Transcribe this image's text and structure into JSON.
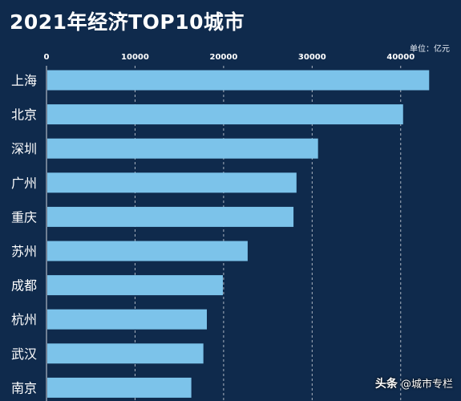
{
  "title": "2021年经济TOP10城市",
  "unit": "单位：亿元",
  "credit": {
    "brand": "头条",
    "account": "@城市专栏"
  },
  "colors": {
    "background": "#0f2a4c",
    "bar": "#7cc3ea",
    "text": "#ffffff",
    "grid": "#ffffff"
  },
  "chart_data": {
    "type": "bar",
    "orientation": "horizontal",
    "title": "2021年经济TOP10城市",
    "unit": "单位：亿元",
    "categories": [
      "上海",
      "北京",
      "深圳",
      "广州",
      "重庆",
      "苏州",
      "成都",
      "杭州",
      "武汉",
      "南京"
    ],
    "values": [
      43215,
      40270,
      30665,
      28232,
      27894,
      22718,
      19917,
      18109,
      17717,
      16355
    ],
    "xlim": [
      0,
      45000
    ],
    "xticks": [
      "0",
      "10000",
      "20000",
      "30000",
      "40000"
    ],
    "grid": "vertical dashed",
    "legend": "none"
  }
}
